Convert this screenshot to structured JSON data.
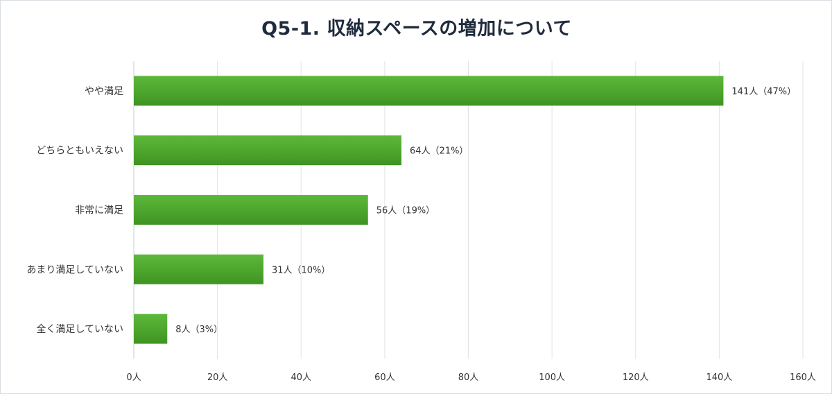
{
  "chart_data": {
    "type": "bar",
    "orientation": "horizontal",
    "title": "Q5-1. 収納スペースの増加について",
    "categories": [
      "やや満足",
      "どちらともいえない",
      "非常に満足",
      "あまり満足していない",
      "全く満足していない"
    ],
    "values": [
      141,
      64,
      56,
      31,
      8
    ],
    "data_labels": [
      "141人（47%）",
      "64人（21%）",
      "56人（19%）",
      "31人（10%）",
      "8人（3%）"
    ],
    "xlim": [
      0,
      160
    ],
    "ticks": [
      0,
      20,
      40,
      60,
      80,
      100,
      120,
      140,
      160
    ],
    "tick_labels": [
      "0人",
      "20人",
      "40人",
      "60人",
      "80人",
      "100人",
      "120人",
      "140人",
      "160人"
    ],
    "xlabel": "",
    "ylabel": "",
    "grid": true,
    "legend": "none",
    "bar_color": "#4ea72e"
  }
}
